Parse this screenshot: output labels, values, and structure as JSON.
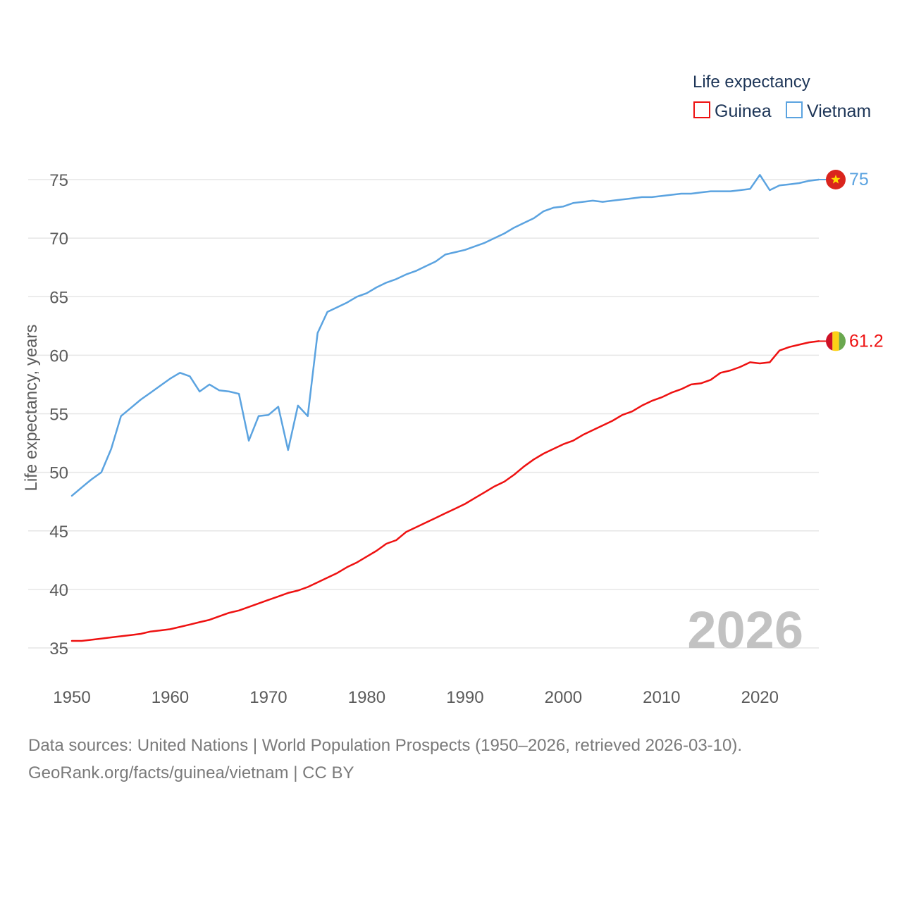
{
  "chart_data": {
    "type": "line",
    "legend": {
      "title": "Life expectancy",
      "position": "top-right"
    },
    "ylabel": "Life expectancy, years",
    "xlabel": "",
    "ylim": [
      33,
      77
    ],
    "xlim": [
      1950,
      2026
    ],
    "yticks": [
      35,
      40,
      45,
      50,
      55,
      60,
      65,
      70,
      75
    ],
    "xticks": [
      1950,
      1960,
      1970,
      1980,
      1990,
      2000,
      2010,
      2020
    ],
    "grid": true,
    "year_watermark": "2026",
    "series": [
      {
        "name": "Guinea",
        "color": "#ee1111",
        "end_label": "61.2",
        "flag": "guinea-flag",
        "x": [
          1950,
          1951,
          1952,
          1953,
          1954,
          1955,
          1956,
          1957,
          1958,
          1959,
          1960,
          1961,
          1962,
          1963,
          1964,
          1965,
          1966,
          1967,
          1968,
          1969,
          1970,
          1971,
          1972,
          1973,
          1974,
          1975,
          1976,
          1977,
          1978,
          1979,
          1980,
          1981,
          1982,
          1983,
          1984,
          1985,
          1986,
          1987,
          1988,
          1989,
          1990,
          1991,
          1992,
          1993,
          1994,
          1995,
          1996,
          1997,
          1998,
          1999,
          2000,
          2001,
          2002,
          2003,
          2004,
          2005,
          2006,
          2007,
          2008,
          2009,
          2010,
          2011,
          2012,
          2013,
          2014,
          2015,
          2016,
          2017,
          2018,
          2019,
          2020,
          2021,
          2022,
          2023,
          2024,
          2025,
          2026
        ],
        "y": [
          35.6,
          35.6,
          35.7,
          35.8,
          35.9,
          36.0,
          36.1,
          36.2,
          36.4,
          36.5,
          36.6,
          36.8,
          37.0,
          37.2,
          37.4,
          37.7,
          38.0,
          38.2,
          38.5,
          38.8,
          39.1,
          39.4,
          39.7,
          39.9,
          40.2,
          40.6,
          41.0,
          41.4,
          41.9,
          42.3,
          42.8,
          43.3,
          43.9,
          44.2,
          44.9,
          45.3,
          45.7,
          46.1,
          46.5,
          46.9,
          47.3,
          47.8,
          48.3,
          48.8,
          49.2,
          49.8,
          50.5,
          51.1,
          51.6,
          52.0,
          52.4,
          52.7,
          53.2,
          53.6,
          54.0,
          54.4,
          54.9,
          55.2,
          55.7,
          56.1,
          56.4,
          56.8,
          57.1,
          57.5,
          57.6,
          57.9,
          58.5,
          58.7,
          59.0,
          59.4,
          59.3,
          59.4,
          60.4,
          60.7,
          60.9,
          61.1,
          61.2
        ]
      },
      {
        "name": "Vietnam",
        "color": "#5ba3e0",
        "end_label": "75",
        "flag": "vietnam-flag",
        "x": [
          1950,
          1951,
          1952,
          1953,
          1954,
          1955,
          1956,
          1957,
          1958,
          1959,
          1960,
          1961,
          1962,
          1963,
          1964,
          1965,
          1966,
          1967,
          1968,
          1969,
          1970,
          1971,
          1972,
          1973,
          1974,
          1975,
          1976,
          1977,
          1978,
          1979,
          1980,
          1981,
          1982,
          1983,
          1984,
          1985,
          1986,
          1987,
          1988,
          1989,
          1990,
          1991,
          1992,
          1993,
          1994,
          1995,
          1996,
          1997,
          1998,
          1999,
          2000,
          2001,
          2002,
          2003,
          2004,
          2005,
          2006,
          2007,
          2008,
          2009,
          2010,
          2011,
          2012,
          2013,
          2014,
          2015,
          2016,
          2017,
          2018,
          2019,
          2020,
          2021,
          2022,
          2023,
          2024,
          2025,
          2026
        ],
        "y": [
          48.0,
          48.7,
          49.4,
          50.0,
          52.0,
          54.8,
          55.5,
          56.2,
          56.8,
          57.4,
          58.0,
          58.5,
          58.2,
          56.9,
          57.5,
          57.0,
          56.9,
          56.7,
          52.7,
          54.8,
          54.9,
          55.6,
          51.9,
          55.7,
          54.8,
          61.9,
          63.7,
          64.1,
          64.5,
          65.0,
          65.3,
          65.8,
          66.2,
          66.5,
          66.9,
          67.2,
          67.6,
          68.0,
          68.6,
          68.8,
          69.0,
          69.3,
          69.6,
          70.0,
          70.4,
          70.9,
          71.3,
          71.7,
          72.3,
          72.6,
          72.7,
          73.0,
          73.1,
          73.2,
          73.1,
          73.2,
          73.3,
          73.4,
          73.5,
          73.5,
          73.6,
          73.7,
          73.8,
          73.8,
          73.9,
          74.0,
          74.0,
          74.0,
          74.1,
          74.2,
          75.4,
          74.1,
          74.5,
          74.6,
          74.7,
          74.9,
          75.0
        ]
      }
    ]
  },
  "source": {
    "line1": "Data sources: United Nations | World Population Prospects (1950–2026, retrieved 2026-03-10).",
    "line2": "GeoRank.org/facts/guinea/vietnam | CC BY"
  }
}
